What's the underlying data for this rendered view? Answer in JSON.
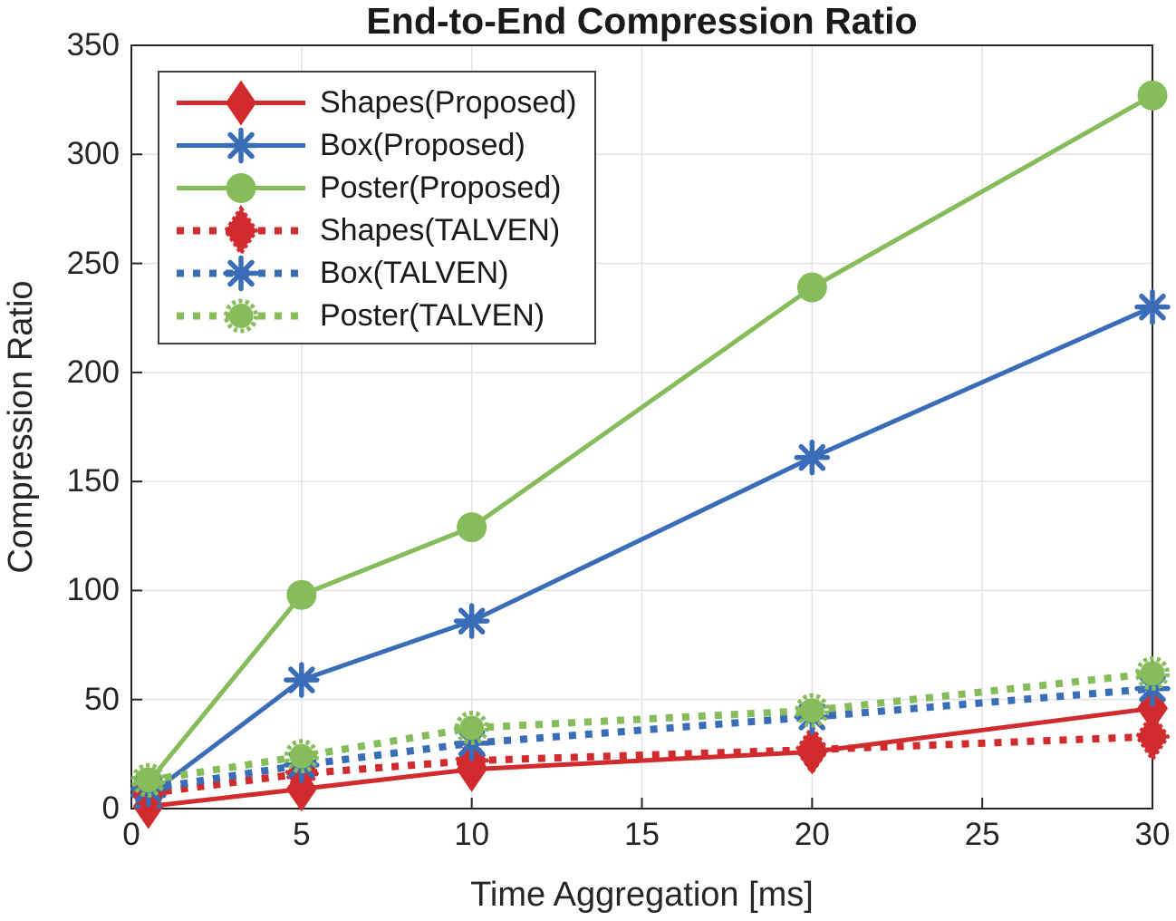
{
  "figure": {
    "background": "#ffffff",
    "text_color": "#262626",
    "axis_color": "#262626",
    "grid_color": "#e3e3e3"
  },
  "chart_data": {
    "type": "line",
    "title": "End-to-End Compression Ratio",
    "xlabel": "Time Aggregation [ms]",
    "ylabel": "Compression Ratio",
    "xlim": [
      0,
      30
    ],
    "ylim": [
      0,
      350
    ],
    "x_ticks": [
      0,
      5,
      10,
      15,
      20,
      25,
      30
    ],
    "y_ticks": [
      0,
      50,
      100,
      150,
      200,
      250,
      300,
      350
    ],
    "grid": true,
    "legend_position": "top-left",
    "x": [
      0.5,
      5,
      10,
      20,
      30
    ],
    "series": [
      {
        "name": "Shapes(Proposed)",
        "color": "#d22b2e",
        "line_style": "solid",
        "marker": "diamond",
        "values": [
          1,
          9,
          18,
          26,
          46
        ]
      },
      {
        "name": "Box(Proposed)",
        "color": "#3a6db8",
        "line_style": "solid",
        "marker": "asterisk",
        "values": [
          6,
          59,
          86,
          161,
          230
        ]
      },
      {
        "name": "Poster(Proposed)",
        "color": "#86bd5a",
        "line_style": "solid",
        "marker": "circle",
        "values": [
          12,
          98,
          129,
          239,
          327
        ]
      },
      {
        "name": "Shapes(TALVEN)",
        "color": "#d22b2e",
        "line_style": "dotted",
        "marker": "diamond",
        "values": [
          7,
          16,
          22,
          27,
          33
        ]
      },
      {
        "name": "Box(TALVEN)",
        "color": "#3a6db8",
        "line_style": "dotted",
        "marker": "asterisk",
        "values": [
          9,
          20,
          30,
          42,
          55
        ]
      },
      {
        "name": "Poster(TALVEN)",
        "color": "#86bd5a",
        "line_style": "dotted",
        "marker": "circle",
        "values": [
          13,
          24,
          37,
          45,
          62
        ]
      }
    ]
  }
}
